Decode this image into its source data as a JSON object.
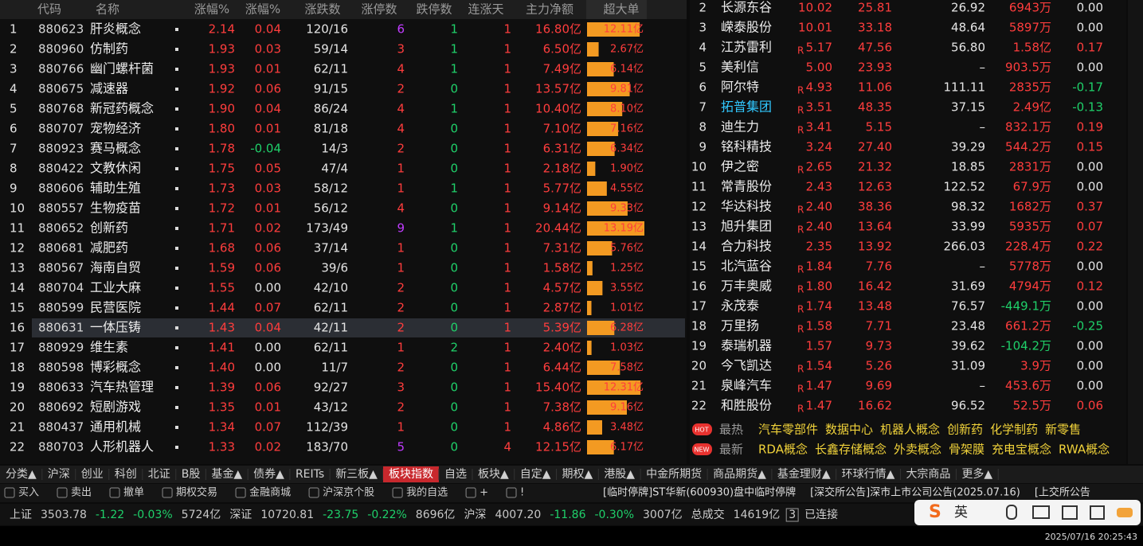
{
  "left_table": {
    "columns": [
      "代码",
      "名称",
      "涨幅%",
      "涨幅%",
      "涨跌数",
      "涨停数",
      "跌停数",
      "连涨天",
      "主力净额",
      "超大单"
    ],
    "rows": [
      [
        "1",
        "880623",
        "肝炎概念",
        "2.14",
        "0.04",
        "120/16",
        "6",
        "1",
        "1",
        "16.80亿",
        "12.11亿"
      ],
      [
        "2",
        "880960",
        "仿制药",
        "1.93",
        "0.03",
        "59/14",
        "3",
        "1",
        "1",
        "6.50亿",
        "2.67亿"
      ],
      [
        "3",
        "880766",
        "幽门螺杆菌",
        "1.93",
        "0.01",
        "62/11",
        "4",
        "1",
        "1",
        "7.49亿",
        "6.14亿"
      ],
      [
        "4",
        "880675",
        "减速器",
        "1.92",
        "0.06",
        "91/15",
        "2",
        "0",
        "1",
        "13.57亿",
        "9.81亿"
      ],
      [
        "5",
        "880768",
        "新冠药概念",
        "1.90",
        "0.04",
        "86/24",
        "4",
        "1",
        "1",
        "10.40亿",
        "8.10亿"
      ],
      [
        "6",
        "880707",
        "宠物经济",
        "1.80",
        "0.01",
        "81/18",
        "4",
        "0",
        "1",
        "7.10亿",
        "7.16亿"
      ],
      [
        "7",
        "880923",
        "赛马概念",
        "1.78",
        "-0.04",
        "14/3",
        "2",
        "0",
        "1",
        "6.31亿",
        "6.34亿"
      ],
      [
        "8",
        "880422",
        "文教休闲",
        "1.75",
        "0.05",
        "47/4",
        "1",
        "0",
        "1",
        "2.18亿",
        "1.90亿"
      ],
      [
        "9",
        "880606",
        "辅助生殖",
        "1.73",
        "0.03",
        "58/12",
        "1",
        "1",
        "1",
        "5.77亿",
        "4.55亿"
      ],
      [
        "10",
        "880557",
        "生物疫苗",
        "1.72",
        "0.01",
        "56/12",
        "4",
        "0",
        "1",
        "9.14亿",
        "9.33亿"
      ],
      [
        "11",
        "880652",
        "创新药",
        "1.71",
        "0.02",
        "173/49",
        "9",
        "1",
        "1",
        "20.44亿",
        "13.19亿"
      ],
      [
        "12",
        "880681",
        "减肥药",
        "1.68",
        "0.06",
        "37/14",
        "1",
        "0",
        "1",
        "7.31亿",
        "5.76亿"
      ],
      [
        "13",
        "880567",
        "海南自贸",
        "1.59",
        "0.06",
        "39/6",
        "1",
        "0",
        "1",
        "1.58亿",
        "1.25亿"
      ],
      [
        "14",
        "880704",
        "工业大麻",
        "1.55",
        "0.00",
        "42/10",
        "2",
        "0",
        "1",
        "4.57亿",
        "3.55亿"
      ],
      [
        "15",
        "880599",
        "民营医院",
        "1.44",
        "0.07",
        "62/11",
        "2",
        "0",
        "1",
        "2.87亿",
        "1.01亿"
      ],
      [
        "16",
        "880631",
        "一体压铸",
        "1.43",
        "0.04",
        "42/11",
        "2",
        "0",
        "1",
        "5.39亿",
        "6.28亿"
      ],
      [
        "17",
        "880929",
        "维生素",
        "1.41",
        "0.00",
        "62/11",
        "1",
        "2",
        "1",
        "2.40亿",
        "1.03亿"
      ],
      [
        "18",
        "880598",
        "博彩概念",
        "1.40",
        "0.00",
        "11/7",
        "2",
        "0",
        "1",
        "6.44亿",
        "7.58亿"
      ],
      [
        "19",
        "880633",
        "汽车热管理",
        "1.39",
        "0.06",
        "92/27",
        "3",
        "0",
        "1",
        "15.40亿",
        "12.31亿"
      ],
      [
        "20",
        "880692",
        "短剧游戏",
        "1.35",
        "0.01",
        "43/12",
        "2",
        "0",
        "1",
        "7.38亿",
        "9.16亿"
      ],
      [
        "21",
        "880437",
        "通用机械",
        "1.34",
        "0.07",
        "112/39",
        "1",
        "0",
        "1",
        "4.86亿",
        "3.48亿"
      ],
      [
        "22",
        "880703",
        "人形机器人",
        "1.33",
        "0.02",
        "183/70",
        "5",
        "0",
        "4",
        "12.15亿",
        "6.17亿"
      ]
    ]
  },
  "right_table": {
    "rows": [
      [
        "2",
        "长源东谷",
        null,
        "10.02",
        "25.81",
        "26.92",
        "6943万",
        "0.00"
      ],
      [
        "3",
        "嵘泰股份",
        null,
        "10.01",
        "33.18",
        "48.64",
        "5897万",
        "0.00"
      ],
      [
        "4",
        "江苏雷利",
        "R",
        "5.17",
        "47.56",
        "56.80",
        "1.58亿",
        "0.17"
      ],
      [
        "5",
        "美利信",
        null,
        "5.00",
        "23.93",
        "–",
        "903.5万",
        "0.00"
      ],
      [
        "6",
        "阿尔特",
        "R",
        "4.93",
        "11.06",
        "111.11",
        "2835万",
        "-0.17"
      ],
      [
        "7",
        "拓普集团",
        "R",
        "3.51",
        "48.35",
        "37.15",
        "2.49亿",
        "-0.13"
      ],
      [
        "8",
        "迪生力",
        "R",
        "3.41",
        "5.15",
        "–",
        "832.1万",
        "0.19"
      ],
      [
        "9",
        "铭科精技",
        null,
        "3.24",
        "27.40",
        "39.29",
        "544.2万",
        "0.15"
      ],
      [
        "10",
        "伊之密",
        "R",
        "2.65",
        "21.32",
        "18.85",
        "2831万",
        "0.00"
      ],
      [
        "11",
        "常青股份",
        null,
        "2.43",
        "12.63",
        "122.52",
        "67.9万",
        "0.00"
      ],
      [
        "12",
        "华达科技",
        "R",
        "2.40",
        "38.36",
        "98.32",
        "1682万",
        "0.37"
      ],
      [
        "13",
        "旭升集团",
        "R",
        "2.40",
        "13.64",
        "33.99",
        "5935万",
        "0.07"
      ],
      [
        "14",
        "合力科技",
        null,
        "2.35",
        "13.92",
        "266.03",
        "228.4万",
        "0.22"
      ],
      [
        "15",
        "北汽蓝谷",
        "R",
        "1.84",
        "7.76",
        "–",
        "5778万",
        "0.00"
      ],
      [
        "16",
        "万丰奥威",
        "R",
        "1.80",
        "16.42",
        "31.69",
        "4794万",
        "0.12"
      ],
      [
        "17",
        "永茂泰",
        "R",
        "1.74",
        "13.48",
        "76.57",
        "-449.1万",
        "0.00"
      ],
      [
        "18",
        "万里扬",
        "R",
        "1.58",
        "7.71",
        "23.48",
        "661.2万",
        "-0.25"
      ],
      [
        "19",
        "泰瑞机器",
        null,
        "1.57",
        "9.73",
        "39.62",
        "-104.2万",
        "0.00"
      ],
      [
        "20",
        "今飞凯达",
        "R",
        "1.54",
        "5.26",
        "31.09",
        "3.9万",
        "0.00"
      ],
      [
        "21",
        "泉峰汽车",
        "R",
        "1.47",
        "9.69",
        "–",
        "453.6万",
        "0.00"
      ],
      [
        "22",
        "和胜股份",
        "R",
        "1.47",
        "16.62",
        "96.52",
        "52.5万",
        "0.06"
      ]
    ]
  },
  "hot": {
    "badge": "HOT",
    "label": "最热",
    "items": [
      "汽车零部件",
      "数据中心",
      "机器人概念",
      "创新药",
      "化学制药",
      "新零售"
    ]
  },
  "new": {
    "badge": "NEW",
    "label": "最新",
    "items": [
      "RDA概念",
      "长鑫存储概念",
      "外卖概念",
      "骨架膜",
      "充电宝概念",
      "RWA概念"
    ]
  },
  "tabs": {
    "items": [
      "分类▲",
      "沪深",
      "创业",
      "科创",
      "北证",
      "B股",
      "基金▲",
      "债券▲",
      "REITs",
      "新三板▲",
      "板块指数",
      "自选",
      "板块▲",
      "自定▲",
      "期权▲",
      "港股▲",
      "中金所期货",
      "商品期货▲",
      "基金理财▲",
      "环球行情▲",
      "大宗商品",
      "更多▲"
    ],
    "active": 10
  },
  "toolbar": {
    "items": [
      "买入",
      "卖出",
      "撤单",
      "期权交易",
      "金融商城",
      "沪深京个股",
      "我的自选",
      "+",
      "!"
    ],
    "news": [
      "[临时停牌]ST华新(600930)盘中临时停牌",
      "[深交所公告]深市上市公司公告(2025.07.16)",
      "[上交所公告"
    ]
  },
  "status": {
    "items": [
      "上证",
      "3503.78",
      "-1.22",
      "-0.03%",
      "5724亿",
      "深证",
      "10720.81",
      "-23.75",
      "-0.22%",
      "8696亿",
      "沪深",
      "4007.20",
      "-11.86",
      "-0.30%",
      "3007亿",
      "总成交",
      "14619亿",
      "3",
      "已连接"
    ]
  },
  "ime": {
    "label": "英"
  },
  "timestamp": "2025/07/16 20:25:43"
}
